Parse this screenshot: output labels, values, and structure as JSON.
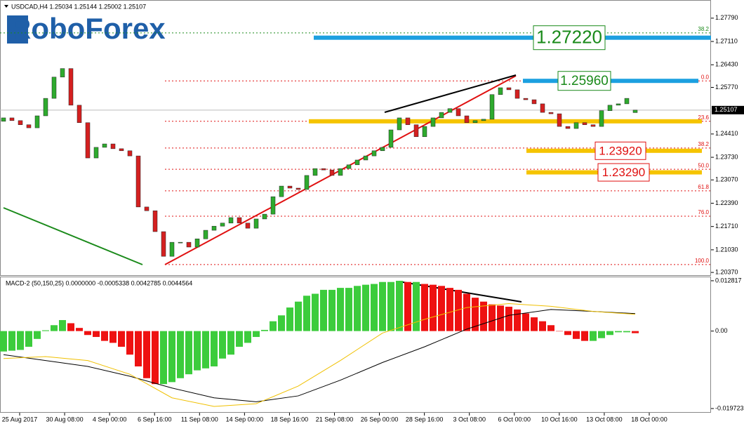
{
  "header": "USDCAD,H4  1.25034 1.25144 1.25002 1.25107",
  "logo": "RoboForex",
  "chart_data": [
    {
      "type": "candlestick",
      "open": [
        1.2478,
        1.2488,
        1.248,
        1.2468,
        1.2459,
        1.2494,
        1.2545,
        1.2607,
        1.2632,
        1.2525,
        1.2474,
        1.2371,
        1.2402,
        1.2412,
        1.2398,
        1.2392,
        1.2377,
        1.2228,
        1.2217,
        1.2156,
        1.2084,
        1.2125,
        1.2125,
        1.2111,
        1.2135,
        1.216,
        1.2172,
        1.2181,
        1.2197,
        1.2181,
        1.2166,
        1.2193,
        1.2207,
        1.2258,
        1.2289,
        1.2283,
        1.2279,
        1.232,
        1.234,
        1.2336,
        1.232,
        1.234,
        1.2351,
        1.2365,
        1.2377,
        1.2392,
        1.2402,
        1.2453,
        1.2488,
        1.2468,
        1.2433,
        1.2463,
        1.2488,
        1.2504,
        1.2515,
        1.2494,
        1.2474,
        1.248,
        1.2484,
        1.2556,
        1.2576,
        1.257,
        1.2545,
        1.2541,
        1.2529,
        1.2504,
        1.25,
        1.2463,
        1.2457,
        1.2474,
        1.2468,
        1.2463,
        1.2509,
        1.2525,
        1.2529,
        1.25034
      ],
      "close": [
        1.2488,
        1.248,
        1.2468,
        1.2459,
        1.2494,
        1.2545,
        1.2607,
        1.2632,
        1.2525,
        1.2474,
        1.2371,
        1.2402,
        1.2412,
        1.2398,
        1.2392,
        1.2377,
        1.2228,
        1.2217,
        1.2156,
        1.2084,
        1.2125,
        1.2125,
        1.2111,
        1.2135,
        1.216,
        1.2172,
        1.2181,
        1.2197,
        1.2181,
        1.2166,
        1.2193,
        1.2207,
        1.2258,
        1.2289,
        1.2283,
        1.2279,
        1.232,
        1.234,
        1.2336,
        1.232,
        1.234,
        1.2351,
        1.2365,
        1.2377,
        1.2392,
        1.2402,
        1.2453,
        1.2488,
        1.2468,
        1.2433,
        1.2463,
        1.2488,
        1.2504,
        1.2515,
        1.2494,
        1.2474,
        1.248,
        1.2484,
        1.2556,
        1.2576,
        1.257,
        1.2545,
        1.2541,
        1.2529,
        1.2504,
        1.25,
        1.2463,
        1.2457,
        1.2474,
        1.2468,
        1.2463,
        1.2509,
        1.2525,
        1.2529,
        1.2545,
        1.25107
      ],
      "up_color": "#2eaa2e",
      "down_color": "#d42020",
      "ylim": [
        1.2029,
        1.2832
      ],
      "yticks": [
        {
          "value": 1.2037,
          "label": "1.20370"
        },
        {
          "value": 1.2103,
          "label": "1.21030"
        },
        {
          "value": 1.2171,
          "label": "1.21710"
        },
        {
          "value": 1.2239,
          "label": "1.22390"
        },
        {
          "value": 1.2307,
          "label": "1.23070"
        },
        {
          "value": 1.2373,
          "label": "1.23730"
        },
        {
          "value": 1.2441,
          "label": "1.24410"
        },
        {
          "value": 1.2577,
          "label": "1.25770"
        },
        {
          "value": 1.2643,
          "label": "1.26430"
        },
        {
          "value": 1.2711,
          "label": "1.27110"
        },
        {
          "value": 1.2779,
          "label": "1.27790"
        }
      ],
      "last_price": 1.25107,
      "fib_levels": [
        {
          "level": "0.0",
          "price": 1.2596
        },
        {
          "level": "23.6",
          "price": 1.2478
        },
        {
          "level": "38.2",
          "price": 1.24
        },
        {
          "level": "50.0",
          "price": 1.2338
        },
        {
          "level": "61.8",
          "price": 1.2275
        },
        {
          "level": "76.0",
          "price": 1.2201
        },
        {
          "level": "100.0",
          "price": 1.206
        }
      ],
      "fib_top": {
        "level": "38.2",
        "price": 1.2736
      },
      "targets": [
        {
          "value": 1.2722,
          "label": "1.27220",
          "band": "#1ca0e0",
          "text": "#1a8a1a"
        },
        {
          "value": 1.2596,
          "label": "1.25960",
          "band": "#1ca0e0",
          "text": "#1a8a1a"
        },
        {
          "value": 1.2392,
          "label": "1.23920",
          "band": "#f5c400",
          "text": "#e01010"
        },
        {
          "value": 1.2329,
          "label": "1.23290",
          "band": "#f5c400",
          "text": "#e01010"
        }
      ],
      "trend_band": {
        "price": 1.2478,
        "color": "#f5c400"
      },
      "xlabels": [
        "25 Aug 2017",
        "30 Aug 08:00",
        "4 Sep 00:00",
        "6 Sep 16:00",
        "11 Sep 08:00",
        "14 Sep 00:00",
        "18 Sep 16:00",
        "21 Sep 08:00",
        "26 Sep 00:00",
        "28 Sep 16:00",
        "3 Oct 08:00",
        "6 Oct 00:00",
        "10 Oct 16:00",
        "13 Oct 08:00",
        "18 Oct 00:00"
      ]
    },
    {
      "type": "histogram",
      "title": "MACD-2 (50,150,25) 0.0000000 -0.0005338 0.0042785 0.0044564",
      "values": [
        -0.0052,
        -0.005,
        -0.0048,
        -0.004,
        -0.002,
        0.0002,
        0.0015,
        0.0028,
        0.002,
        0.0008,
        -0.001,
        -0.0015,
        -0.0025,
        -0.003,
        -0.004,
        -0.006,
        -0.009,
        -0.012,
        -0.0135,
        -0.0135,
        -0.013,
        -0.012,
        -0.011,
        -0.01,
        -0.0095,
        -0.009,
        -0.007,
        -0.006,
        -0.004,
        -0.003,
        -0.0015,
        0.0003,
        0.0025,
        0.004,
        0.006,
        0.0075,
        0.009,
        0.0095,
        0.0105,
        0.0105,
        0.011,
        0.011,
        0.0115,
        0.0118,
        0.012,
        0.0125,
        0.0125,
        0.0128,
        0.0125,
        0.0125,
        0.012,
        0.0118,
        0.0115,
        0.011,
        0.0105,
        0.0095,
        0.0085,
        0.0075,
        0.0068,
        0.0065,
        0.0062,
        0.0055,
        0.0045,
        0.0035,
        0.0025,
        0.0015,
        0.0,
        -0.001,
        -0.002,
        -0.0025,
        -0.0025,
        -0.0018,
        -0.001,
        -0.0003,
        -0.0003,
        -0.0005338
      ],
      "up_color": "#3ccc3c",
      "down_color": "#ee1111",
      "ylim": [
        -0.0208,
        0.0137
      ],
      "yticks": [
        0.012817,
        {
          "value": 0,
          "label": "0.00"
        },
        -0.019723
      ],
      "line_x": [
        0,
        5,
        10,
        15,
        20,
        25,
        30,
        35,
        40,
        45,
        50,
        55,
        60,
        65,
        70,
        75
      ],
      "lines": [
        {
          "color": "#000000",
          "values": [
            -0.006,
            -0.0075,
            -0.009,
            -0.0115,
            -0.0145,
            -0.017,
            -0.018,
            -0.0165,
            -0.0125,
            -0.008,
            -0.004,
            0.0005,
            0.004,
            0.0055,
            0.005,
            0.0044564
          ]
        },
        {
          "color": "#f0c000",
          "values": [
            -0.007,
            -0.0065,
            -0.0075,
            -0.011,
            -0.017,
            -0.0192,
            -0.0185,
            -0.014,
            -0.0075,
            -0.0005,
            0.003,
            0.006,
            0.007,
            0.0063,
            0.005,
            0.0042785
          ]
        }
      ]
    }
  ]
}
